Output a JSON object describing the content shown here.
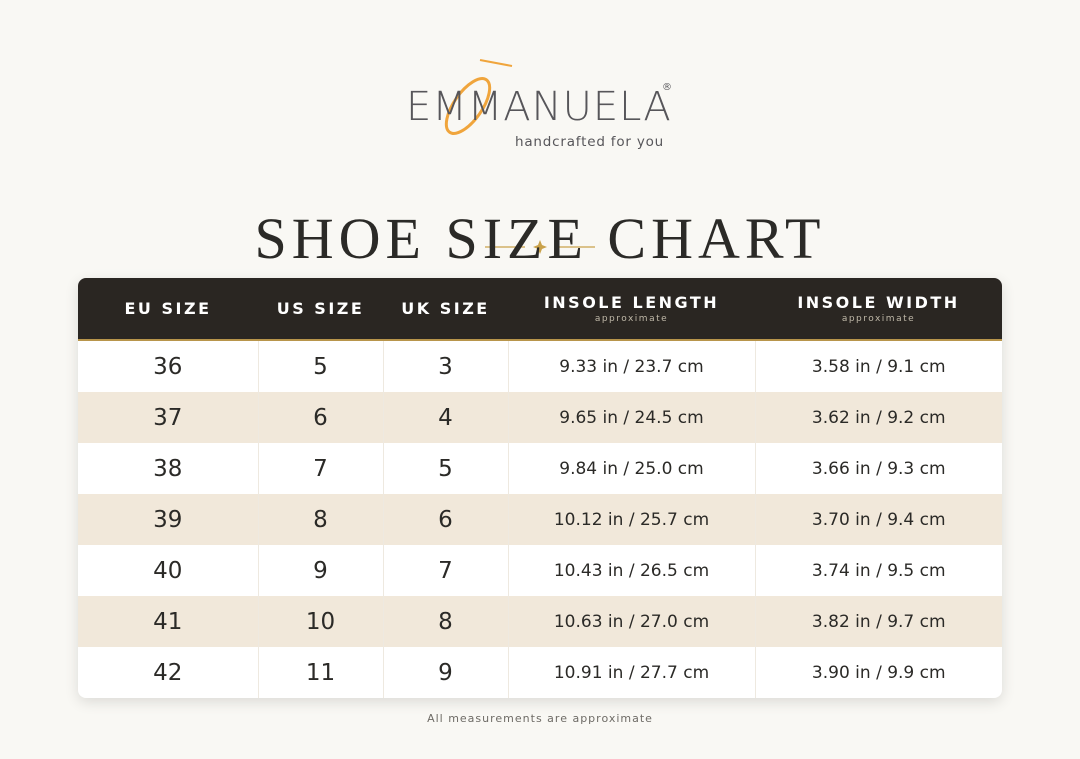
{
  "header": {
    "brand": "EMMANUELA",
    "registered": "®",
    "tagline": "handcrafted for you",
    "title": "SHOE SIZE CHART"
  },
  "table": {
    "columns": [
      {
        "label": "EU SIZE"
      },
      {
        "label": "US SIZE"
      },
      {
        "label": "UK SIZE"
      },
      {
        "label": "INSOLE LENGTH",
        "note": "approximate"
      },
      {
        "label": "INSOLE WIDTH",
        "note": "approximate"
      }
    ],
    "rows": [
      [
        "36",
        "5",
        "3",
        "9.33 in / 23.7 cm",
        "3.58 in / 9.1 cm"
      ],
      [
        "37",
        "6",
        "4",
        "9.65 in / 24.5 cm",
        "3.62 in / 9.2 cm"
      ],
      [
        "38",
        "7",
        "5",
        "9.84 in / 25.0 cm",
        "3.66 in / 9.3 cm"
      ],
      [
        "39",
        "8",
        "6",
        "10.12 in / 25.7 cm",
        "3.70 in / 9.4 cm"
      ],
      [
        "40",
        "9",
        "7",
        "10.43 in / 26.5 cm",
        "3.74 in / 9.5 cm"
      ],
      [
        "41",
        "10",
        "8",
        "10.63 in / 27.0 cm",
        "3.82 in / 9.7 cm"
      ],
      [
        "42",
        "11",
        "9",
        "10.91 in / 27.7 cm",
        "3.90 in / 9.9 cm"
      ]
    ]
  },
  "footer": {
    "note": "All measurements are approximate"
  }
}
